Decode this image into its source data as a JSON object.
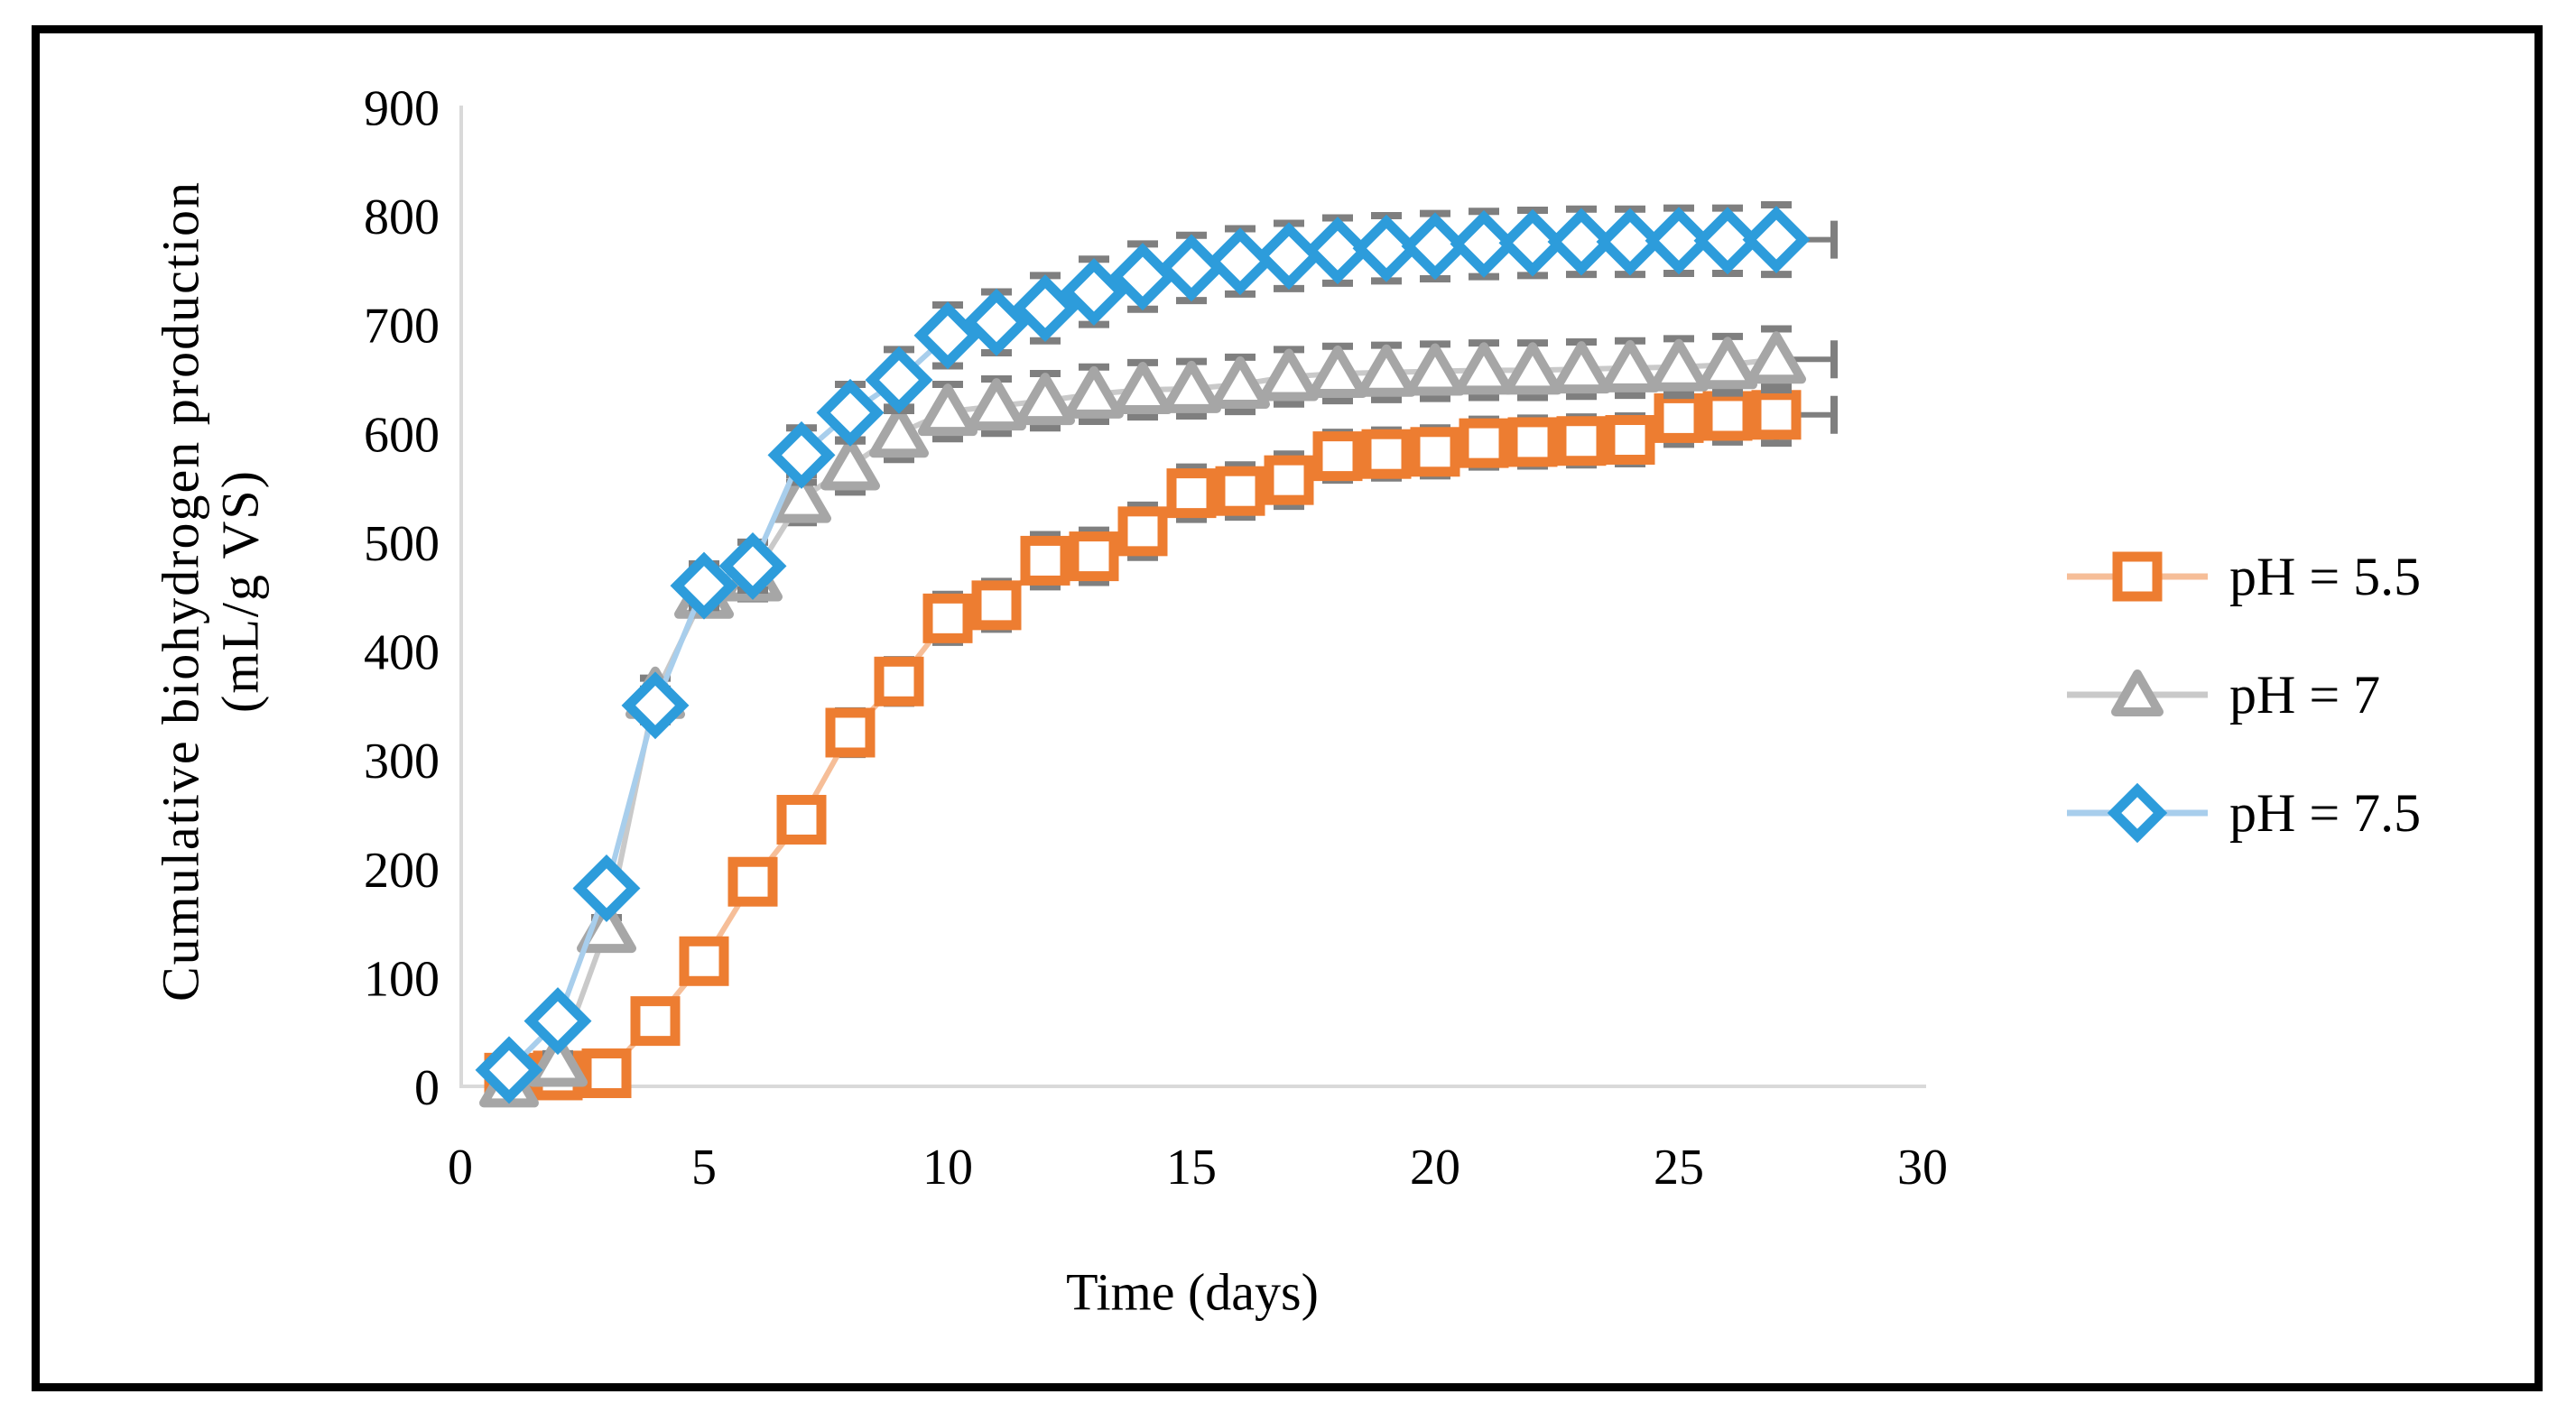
{
  "chart_data": {
    "type": "line",
    "title": "",
    "xlabel": "Time (days)",
    "ylabel_line1": "Cumulative biohydrogen  production",
    "ylabel_line2": "(mL/g VS)",
    "xlim": [
      0,
      30
    ],
    "ylim": [
      0,
      900
    ],
    "x_ticks": [
      0,
      5,
      10,
      15,
      20,
      25,
      30
    ],
    "y_ticks": [
      0,
      100,
      200,
      300,
      400,
      500,
      600,
      700,
      800,
      900
    ],
    "grid": false,
    "legend_position": "right",
    "axis_line_color": "#d9d9d9",
    "error_bar_color": "#7f7f7f",
    "x": [
      1,
      2,
      3,
      4,
      5,
      6,
      7,
      8,
      9,
      10,
      11,
      12,
      13,
      14,
      15,
      16,
      17,
      18,
      19,
      20,
      21,
      22,
      23,
      24,
      25,
      26,
      27
    ],
    "series": [
      {
        "name": "pH = 5.5",
        "marker": "square",
        "marker_color": "#ED7D31",
        "line_color": "#F6BE98",
        "values": [
          8,
          10,
          12,
          60,
          115,
          188,
          245,
          325,
          372,
          430,
          442,
          483,
          487,
          510,
          545,
          547,
          557,
          579,
          581,
          583,
          591,
          592,
          593,
          594,
          614,
          616,
          617
        ],
        "errors": [
          5,
          5,
          6,
          10,
          12,
          15,
          18,
          20,
          20,
          22,
          22,
          24,
          24,
          24,
          24,
          24,
          24,
          22,
          22,
          22,
          22,
          22,
          22,
          22,
          24,
          24,
          26
        ]
      },
      {
        "name": "pH = 7",
        "marker": "triangle",
        "marker_color": "#A6A6A6",
        "line_color": "#C9C9C9",
        "values": [
          3,
          22,
          145,
          360,
          452,
          468,
          540,
          570,
          600,
          620,
          625,
          630,
          636,
          640,
          641,
          645,
          652,
          655,
          656,
          657,
          658,
          658,
          659,
          660,
          661,
          663,
          668
        ],
        "errors": [
          4,
          8,
          10,
          15,
          18,
          20,
          22,
          24,
          24,
          25,
          25,
          25,
          25,
          25,
          25,
          25,
          25,
          25,
          25,
          25,
          25,
          25,
          25,
          25,
          26,
          26,
          28
        ]
      },
      {
        "name": "pH = 7.5",
        "marker": "diamond",
        "marker_color": "#2D9CDB",
        "line_color": "#A8CEEC",
        "values": [
          15,
          60,
          182,
          350,
          460,
          478,
          580,
          619,
          649,
          690,
          702,
          715,
          730,
          744,
          752,
          758,
          763,
          768,
          770,
          772,
          774,
          775,
          776,
          776,
          777,
          777,
          778
        ],
        "errors": [
          5,
          8,
          12,
          15,
          20,
          22,
          25,
          26,
          28,
          28,
          28,
          30,
          30,
          30,
          30,
          30,
          30,
          30,
          30,
          30,
          30,
          30,
          30,
          30,
          30,
          30,
          32
        ]
      }
    ]
  }
}
